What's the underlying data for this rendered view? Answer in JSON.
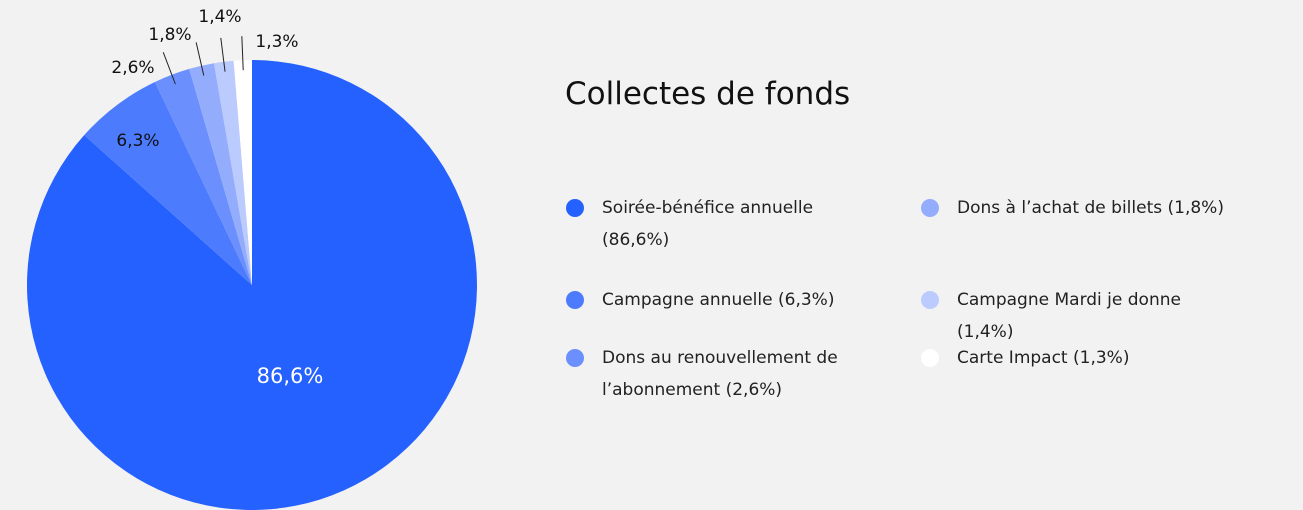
{
  "chart_data": {
    "type": "pie",
    "title": "Collectes de fonds",
    "categories": [
      "Soirée-bénéfice annuelle (86,6%)",
      "Campagne annuelle (6,3%)",
      "Dons au renouvellement de l’abonnement (2,6%)",
      "Dons à l’achat de billets (1,8%)",
      "Campagne Mardi je donne (1,4%)",
      "Carte Impact (1,3%)"
    ],
    "values": [
      86.6,
      6.3,
      2.6,
      1.8,
      1.4,
      1.3
    ],
    "value_labels": [
      "86,6%",
      "6,3%",
      "2,6%",
      "1,8%",
      "1,4%",
      "1,3%"
    ],
    "colors": [
      "#2561ff",
      "#4c7bfe",
      "#6b90fd",
      "#93adfc",
      "#bccbfd",
      "#ffffff"
    ]
  }
}
